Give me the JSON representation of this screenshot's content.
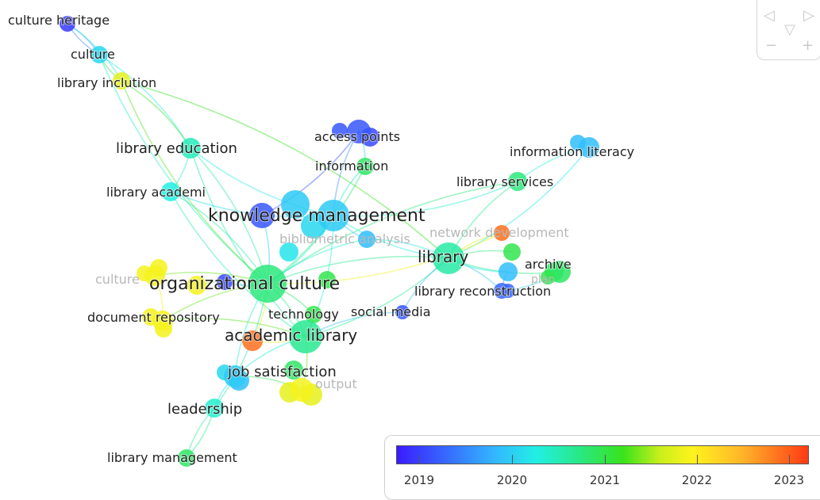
{
  "nodes": [
    {
      "id": "culture-heritage",
      "label": "culture heritage",
      "year": 2019.1,
      "faint": false
    },
    {
      "id": "culture",
      "label": "culture",
      "year": 2020.2,
      "faint": false
    },
    {
      "id": "library-inclution",
      "label": "library inclution",
      "year": 2021.9,
      "faint": false
    },
    {
      "id": "library-education",
      "label": "library education",
      "year": 2020.6,
      "faint": false
    },
    {
      "id": "library-academi",
      "label": "library academi",
      "year": 2020.4,
      "faint": false
    },
    {
      "id": "access-points",
      "label": "access points",
      "year": 2019.3,
      "faint": false
    },
    {
      "id": "information",
      "label": "information",
      "year": 2021.0,
      "faint": false
    },
    {
      "id": "information-literacy",
      "label": "information literacy",
      "year": 2020.0,
      "faint": false
    },
    {
      "id": "library-services",
      "label": "library services",
      "year": 2020.9,
      "faint": false
    },
    {
      "id": "knowledge-management",
      "label": "knowledge management",
      "year": 2020.1,
      "faint": false
    },
    {
      "id": "bibliometric-analysis",
      "label": "bibliometric analysis",
      "year": 2020.0,
      "faint": true
    },
    {
      "id": "network-development",
      "label": "network development",
      "year": 2023.0,
      "faint": true
    },
    {
      "id": "library",
      "label": "library",
      "year": 2020.7,
      "faint": false
    },
    {
      "id": "archive",
      "label": "archive",
      "year": 2021.0,
      "faint": false
    },
    {
      "id": "plan",
      "label": "plan",
      "year": 2021.1,
      "faint": true
    },
    {
      "id": "library-reconstruction",
      "label": "library reconstruction",
      "year": 2019.4,
      "faint": false
    },
    {
      "id": "culture-faint",
      "label": "culture",
      "year": 2022.0,
      "faint": true
    },
    {
      "id": "organizational-culture",
      "label": "organizational culture",
      "year": 2020.9,
      "faint": false
    },
    {
      "id": "document-repository",
      "label": "document repository",
      "year": 2022.0,
      "faint": false
    },
    {
      "id": "technology",
      "label": "technology",
      "year": 2021.1,
      "faint": false
    },
    {
      "id": "social-media",
      "label": "social media",
      "year": 2019.3,
      "faint": false
    },
    {
      "id": "academic-library",
      "label": "academic library",
      "year": 2020.8,
      "faint": false
    },
    {
      "id": "job-satisfaction",
      "label": "job satisfaction",
      "year": 2020.1,
      "faint": false
    },
    {
      "id": "output",
      "label": "output",
      "year": 2022.0,
      "faint": true
    },
    {
      "id": "leadership",
      "label": "leadership",
      "year": 2020.5,
      "faint": false
    },
    {
      "id": "library-management",
      "label": "library management",
      "year": 2021.0,
      "faint": false
    },
    {
      "id": "academic-red",
      "label": "",
      "year": 2023.0,
      "faint": false
    },
    {
      "id": "kmgmt-purple",
      "label": "",
      "year": 2019.3,
      "faint": false
    },
    {
      "id": "library-green",
      "label": "",
      "year": 2021.1,
      "faint": false
    },
    {
      "id": "library-blue",
      "label": "",
      "year": 2020.0,
      "faint": false
    },
    {
      "id": "orgcult-yellow",
      "label": "",
      "year": 2022.0,
      "faint": false
    },
    {
      "id": "orgcult-purple",
      "label": "",
      "year": 2019.2,
      "faint": false
    }
  ],
  "links": [
    [
      "culture-heritage",
      "culture"
    ],
    [
      "culture-heritage",
      "culture"
    ],
    [
      "culture-heritage",
      "library-inclution"
    ],
    [
      "culture",
      "library-inclution"
    ],
    [
      "culture",
      "library-education"
    ],
    [
      "culture",
      "organizational-culture"
    ],
    [
      "library-inclution",
      "library-education"
    ],
    [
      "library-inclution",
      "organizational-culture"
    ],
    [
      "library-inclution",
      "library"
    ],
    [
      "library-education",
      "knowledge-management"
    ],
    [
      "library-education",
      "organizational-culture"
    ],
    [
      "library-education",
      "academic-library"
    ],
    [
      "library-education",
      "library-academi"
    ],
    [
      "library-academi",
      "knowledge-management"
    ],
    [
      "library-academi",
      "organizational-culture"
    ],
    [
      "library-academi",
      "academic-library"
    ],
    [
      "access-points",
      "information"
    ],
    [
      "access-points",
      "knowledge-management"
    ],
    [
      "access-points",
      "kmgmt-purple"
    ],
    [
      "information",
      "knowledge-management"
    ],
    [
      "information",
      "organizational-culture"
    ],
    [
      "information-literacy",
      "library-services"
    ],
    [
      "information-literacy",
      "library"
    ],
    [
      "library-services",
      "library"
    ],
    [
      "library-services",
      "knowledge-management"
    ],
    [
      "library-services",
      "organizational-culture"
    ],
    [
      "knowledge-management",
      "organizational-culture"
    ],
    [
      "knowledge-management",
      "library"
    ],
    [
      "knowledge-management",
      "academic-library"
    ],
    [
      "knowledge-management",
      "bibliometric-analysis"
    ],
    [
      "kmgmt-purple",
      "organizational-culture"
    ],
    [
      "bibliometric-analysis",
      "organizational-culture"
    ],
    [
      "bibliometric-analysis",
      "library"
    ],
    [
      "network-development",
      "library"
    ],
    [
      "network-development",
      "organizational-culture"
    ],
    [
      "library",
      "archive"
    ],
    [
      "library",
      "library-reconstruction"
    ],
    [
      "library",
      "organizational-culture"
    ],
    [
      "library",
      "academic-library"
    ],
    [
      "library",
      "social-media"
    ],
    [
      "library",
      "library-green"
    ],
    [
      "library",
      "library-blue"
    ],
    [
      "archive",
      "library-reconstruction"
    ],
    [
      "library-blue",
      "library-reconstruction"
    ],
    [
      "organizational-culture",
      "academic-library"
    ],
    [
      "organizational-culture",
      "document-repository"
    ],
    [
      "organizational-culture",
      "technology"
    ],
    [
      "organizational-culture",
      "job-satisfaction"
    ],
    [
      "organizational-culture",
      "leadership"
    ],
    [
      "organizational-culture",
      "orgcult-yellow"
    ],
    [
      "organizational-culture",
      "orgcult-purple"
    ],
    [
      "organizational-culture",
      "culture-faint"
    ],
    [
      "document-repository",
      "academic-library"
    ],
    [
      "document-repository",
      "culture-faint"
    ],
    [
      "technology",
      "academic-library"
    ],
    [
      "social-media",
      "academic-library"
    ],
    [
      "academic-library",
      "academic-red"
    ],
    [
      "academic-library",
      "job-satisfaction"
    ],
    [
      "academic-library",
      "output"
    ],
    [
      "job-satisfaction",
      "leadership"
    ],
    [
      "job-satisfaction",
      "output"
    ],
    [
      "leadership",
      "library-management"
    ],
    [
      "leadership",
      "library-management"
    ],
    [
      "academic-red",
      "organizational-culture"
    ]
  ],
  "legend": {
    "ticks": [
      "2019",
      "2020",
      "2021",
      "2022",
      "2023"
    ],
    "range": [
      2018.9,
      2023.3
    ],
    "gradient_colors": [
      "#3a1bff",
      "#33b8ff",
      "#21f0e3",
      "#29e889",
      "#39e31c",
      "#fff31c",
      "#ffb52a",
      "#ff3a14"
    ]
  },
  "controls": {
    "left_arrow": "◁",
    "right_arrow": "▷",
    "down_arrow": "▽",
    "zoom_out": "−",
    "zoom_in": "+"
  }
}
